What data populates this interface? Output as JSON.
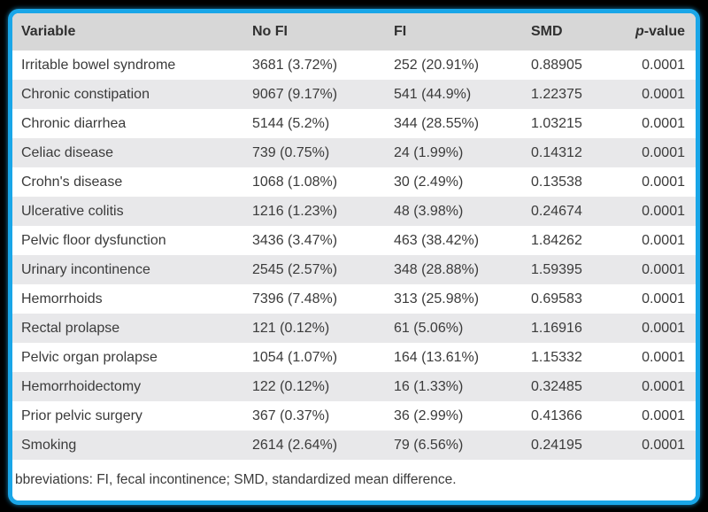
{
  "colors": {
    "outer_background": "#000000",
    "panel_border": "#19a6e8",
    "header_background": "#d7d7d7",
    "alt_row_background": "#e8e8ea",
    "row_background": "#ffffff",
    "text": "#3b3b3b"
  },
  "table": {
    "columns": [
      {
        "key": "variable",
        "label": "Variable",
        "align": "left"
      },
      {
        "key": "no-fi",
        "label": "No FI",
        "align": "left"
      },
      {
        "key": "fi",
        "label": "FI",
        "align": "left"
      },
      {
        "key": "smd",
        "label": "SMD",
        "align": "left"
      },
      {
        "key": "p-value",
        "label": "p-value",
        "align": "right"
      }
    ],
    "p_value_header": {
      "italic": "p",
      "rest": "-value"
    },
    "rows": [
      [
        "Irritable bowel syndrome",
        "3681 (3.72%)",
        "252 (20.91%)",
        "0.88905",
        "0.0001"
      ],
      [
        "Chronic constipation",
        "9067 (9.17%)",
        "541 (44.9%)",
        "1.22375",
        "0.0001"
      ],
      [
        "Chronic diarrhea",
        "5144 (5.2%)",
        "344 (28.55%)",
        "1.03215",
        "0.0001"
      ],
      [
        "Celiac disease",
        "739 (0.75%)",
        "24 (1.99%)",
        "0.14312",
        "0.0001"
      ],
      [
        "Crohn's disease",
        "1068 (1.08%)",
        "30 (2.49%)",
        "0.13538",
        "0.0001"
      ],
      [
        "Ulcerative colitis",
        "1216 (1.23%)",
        "48 (3.98%)",
        "0.24674",
        "0.0001"
      ],
      [
        "Pelvic floor dysfunction",
        "3436 (3.47%)",
        "463 (38.42%)",
        "1.84262",
        "0.0001"
      ],
      [
        "Urinary incontinence",
        "2545 (2.57%)",
        "348 (28.88%)",
        "1.59395",
        "0.0001"
      ],
      [
        "Hemorrhoids",
        "7396 (7.48%)",
        "313 (25.98%)",
        "0.69583",
        "0.0001"
      ],
      [
        "Rectal prolapse",
        "121 (0.12%)",
        "61 (5.06%)",
        "1.16916",
        "0.0001"
      ],
      [
        "Pelvic organ prolapse",
        "1054 (1.07%)",
        "164 (13.61%)",
        "1.15332",
        "0.0001"
      ],
      [
        "Hemorrhoidectomy",
        "122 (0.12%)",
        "16 (1.33%)",
        "0.32485",
        "0.0001"
      ],
      [
        "Prior pelvic surgery",
        "367 (0.37%)",
        "36 (2.99%)",
        "0.41366",
        "0.0001"
      ],
      [
        "Smoking",
        "2614 (2.64%)",
        "79 (6.56%)",
        "0.24195",
        "0.0001"
      ]
    ],
    "footnote": "bbreviations: FI, fecal incontinence; SMD, standardized mean difference."
  },
  "chart_data": {
    "type": "table",
    "columns": [
      "Variable",
      "No FI",
      "FI",
      "SMD",
      "p-value"
    ],
    "rows": [
      [
        "Irritable bowel syndrome",
        "3681 (3.72%)",
        "252 (20.91%)",
        "0.88905",
        "0.0001"
      ],
      [
        "Chronic constipation",
        "9067 (9.17%)",
        "541 (44.9%)",
        "1.22375",
        "0.0001"
      ],
      [
        "Chronic diarrhea",
        "5144 (5.2%)",
        "344 (28.55%)",
        "1.03215",
        "0.0001"
      ],
      [
        "Celiac disease",
        "739 (0.75%)",
        "24 (1.99%)",
        "0.14312",
        "0.0001"
      ],
      [
        "Crohn's disease",
        "1068 (1.08%)",
        "30 (2.49%)",
        "0.13538",
        "0.0001"
      ],
      [
        "Ulcerative colitis",
        "1216 (1.23%)",
        "48 (3.98%)",
        "0.24674",
        "0.0001"
      ],
      [
        "Pelvic floor dysfunction",
        "3436 (3.47%)",
        "463 (38.42%)",
        "1.84262",
        "0.0001"
      ],
      [
        "Urinary incontinence",
        "2545 (2.57%)",
        "348 (28.88%)",
        "1.59395",
        "0.0001"
      ],
      [
        "Hemorrhoids",
        "7396 (7.48%)",
        "313 (25.98%)",
        "0.69583",
        "0.0001"
      ],
      [
        "Rectal prolapse",
        "121 (0.12%)",
        "61 (5.06%)",
        "1.16916",
        "0.0001"
      ],
      [
        "Pelvic organ prolapse",
        "1054 (1.07%)",
        "164 (13.61%)",
        "1.15332",
        "0.0001"
      ],
      [
        "Hemorrhoidectomy",
        "122 (0.12%)",
        "16 (1.33%)",
        "0.32485",
        "0.0001"
      ],
      [
        "Prior pelvic surgery",
        "367 (0.37%)",
        "36 (2.99%)",
        "0.41366",
        "0.0001"
      ],
      [
        "Smoking",
        "2614 (2.64%)",
        "79 (6.56%)",
        "0.24195",
        "0.0001"
      ]
    ],
    "footnote": "bbreviations: FI, fecal incontinence; SMD, standardized mean difference."
  }
}
